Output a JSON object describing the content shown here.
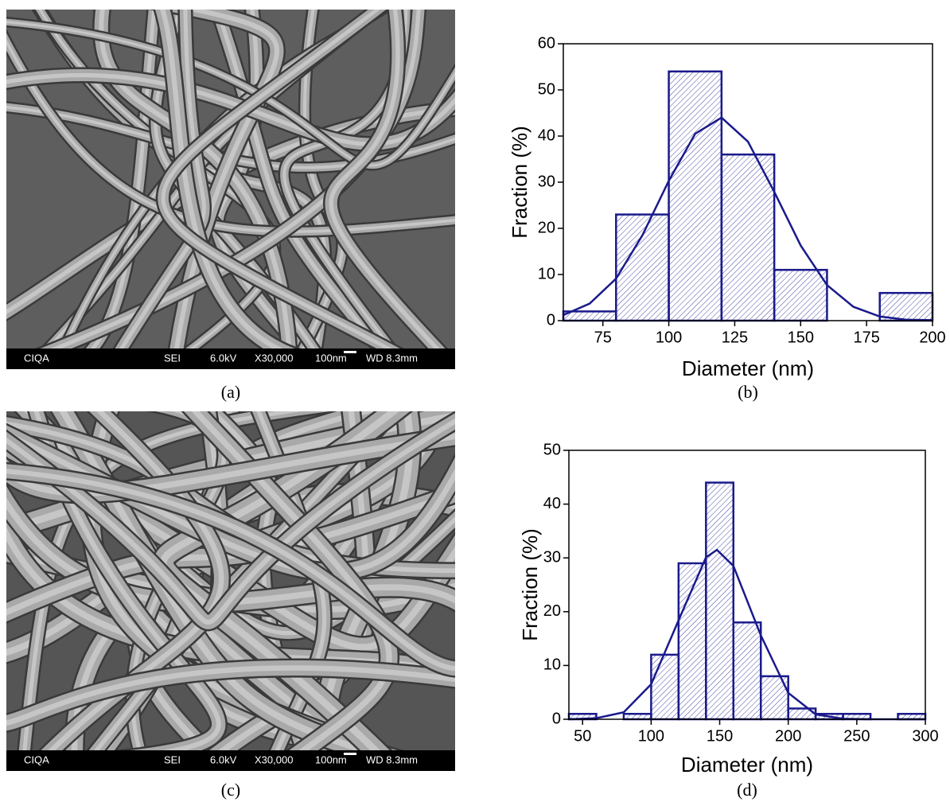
{
  "panels": [
    {
      "caption": "(a)",
      "info": [
        "CIQA",
        "SEI",
        "6.0kV",
        "X30,000",
        "100nm",
        "WD 8.3mm"
      ]
    },
    {
      "caption": "(c)",
      "info": [
        "CIQA",
        "SEI",
        "6.0kV",
        "X30,000",
        "100nm",
        "WD 8.3mm"
      ]
    }
  ],
  "chart_data": [
    {
      "type": "histogram",
      "caption": "(b)",
      "xlabel": "Diameter (nm)",
      "ylabel": "Fraction (%)",
      "bins": [
        60,
        80,
        100,
        120,
        140,
        160,
        180,
        200
      ],
      "values": [
        2,
        23,
        54,
        36,
        11,
        0,
        6
      ],
      "color": "#1a1a8c",
      "xlim": [
        60,
        200
      ],
      "ylim": [
        0,
        60
      ],
      "xticks": [
        75,
        100,
        125,
        150,
        175,
        200
      ],
      "yticks": [
        0,
        10,
        20,
        30,
        40,
        50,
        60
      ],
      "fit": {
        "x": [
          60,
          70,
          80,
          90,
          100,
          110,
          120,
          130,
          140,
          150,
          160,
          170,
          180,
          190,
          200
        ],
        "values": [
          1.2,
          3.7,
          9.1,
          18.5,
          30.3,
          40.5,
          44.0,
          38.8,
          27.9,
          16.3,
          7.7,
          3.0,
          0.9,
          0.2,
          0.1
        ]
      }
    },
    {
      "type": "histogram",
      "caption": "(d)",
      "xlabel": "Diameter (nm)",
      "ylabel": "Fraction (%)",
      "bins": [
        40,
        60,
        80,
        100,
        120,
        140,
        160,
        180,
        200,
        220,
        240,
        260,
        280,
        300
      ],
      "values": [
        1,
        0,
        1,
        12,
        29,
        44,
        18,
        8,
        2,
        1,
        1,
        0,
        1
      ],
      "color": "#1a1a8c",
      "xlim": [
        40,
        300
      ],
      "ylim": [
        0,
        50
      ],
      "xticks": [
        50,
        100,
        150,
        200,
        250,
        300
      ],
      "yticks": [
        0,
        10,
        20,
        30,
        40,
        50
      ],
      "fit": {
        "x": [
          40,
          60,
          80,
          100,
          120,
          140,
          148,
          160,
          180,
          200,
          220,
          240,
          260,
          280,
          300
        ],
        "values": [
          0.0,
          0.2,
          1.3,
          6.5,
          18.4,
          30.1,
          31.5,
          28.5,
          15.6,
          4.9,
          0.9,
          0.1,
          0.0,
          0.0,
          0.0
        ]
      }
    }
  ]
}
